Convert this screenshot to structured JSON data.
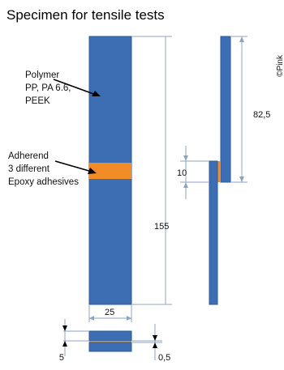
{
  "title": "Specimen for tensile tests",
  "copyright": "©Pink",
  "labels": {
    "polymer": [
      "Polymer",
      "PP, PA 6.6,",
      "PEEK"
    ],
    "adherend": [
      "Adherend",
      "3 different",
      "Epoxy adhesives"
    ]
  },
  "dimensions": {
    "length": "155",
    "width": "25",
    "thickness_total": "5",
    "adhesive_thickness": "0,5",
    "overlap": "10",
    "upper_length": "82,5"
  },
  "colors": {
    "specimen": "#3D6EB4",
    "adhesive": "#F28C28",
    "dimension_line": "#8FA3BF"
  }
}
